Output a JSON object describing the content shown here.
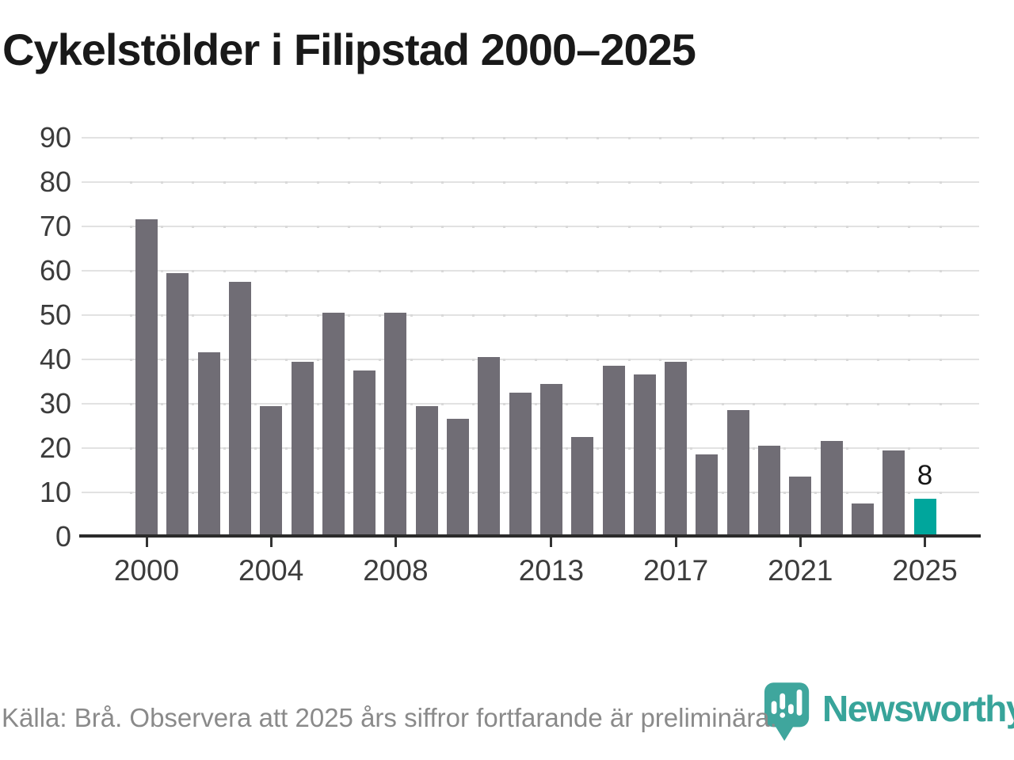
{
  "title": "Cykelstölder i Filipstad 2000–2025",
  "chart_data": {
    "type": "bar",
    "title": "Cykelstölder i Filipstad 2000–2025",
    "categories": [
      2000,
      2001,
      2002,
      2003,
      2004,
      2005,
      2006,
      2007,
      2008,
      2009,
      2010,
      2011,
      2012,
      2013,
      2014,
      2015,
      2016,
      2017,
      2018,
      2019,
      2020,
      2021,
      2022,
      2023,
      2024,
      2025
    ],
    "values": [
      71,
      59,
      41,
      57,
      29,
      39,
      50,
      37,
      50,
      29,
      26,
      40,
      32,
      34,
      22,
      38,
      36,
      39,
      18,
      28,
      20,
      13,
      21,
      7,
      19,
      8
    ],
    "highlight_index": 25,
    "highlight_label": "8",
    "bar_color": "#706d75",
    "highlight_color": "#00a69c",
    "xlabel": "",
    "ylabel": "",
    "ylim": [
      0,
      90
    ],
    "yticks": [
      0,
      10,
      20,
      30,
      40,
      50,
      60,
      70,
      80,
      90
    ],
    "xticks": [
      2000,
      2004,
      2008,
      2013,
      2017,
      2021,
      2025
    ],
    "grid": "horizontal",
    "legend": "none"
  },
  "footer": {
    "source_note": "Källa: Brå. Observera att 2025 års siffror fortfarande är preliminära."
  },
  "branding": {
    "name": "Newsworthy",
    "logo_icon": "newsworthy-bar-chart-bubble-icon",
    "brand_color": "#38a49a"
  }
}
